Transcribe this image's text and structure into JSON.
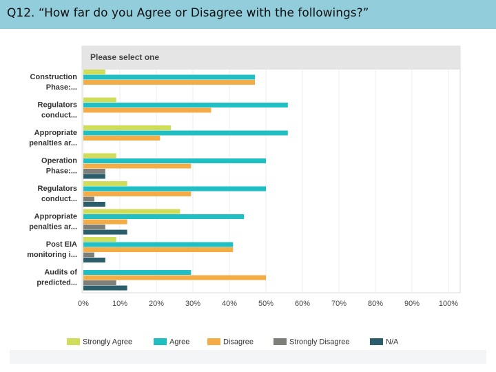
{
  "slide": {
    "title": "Q12.  “How far do you Agree or Disagree with the followings?”"
  },
  "colors": {
    "header_bg": "#92cddc",
    "strongly_agree": "#d0dd5b",
    "agree": "#1fbfc4",
    "disagree": "#f4ad46",
    "strongly_disagree": "#7f7f7a",
    "na": "#2b5d6b"
  },
  "chart_data": {
    "type": "bar",
    "orientation": "horizontal",
    "title": "Please select one",
    "categories": [
      "Construction Phase:...",
      "Regulators conduct...",
      "Appropriate penalties ar...",
      "Operation Phase:...",
      "Regulators conduct...",
      "Appropriate penalties ar...",
      "Post EIA monitoring i...",
      "Audits of predicted..."
    ],
    "category_lines": [
      [
        "Construction",
        "Phase:..."
      ],
      [
        "Regulators",
        "conduct..."
      ],
      [
        "Appropriate",
        "penalties ar..."
      ],
      [
        "Operation",
        "Phase:..."
      ],
      [
        "Regulators",
        "conduct..."
      ],
      [
        "Appropriate",
        "penalties ar..."
      ],
      [
        "Post EIA",
        "monitoring i..."
      ],
      [
        "Audits of",
        "predicted..."
      ]
    ],
    "series": [
      {
        "name": "Strongly Agree",
        "color": "#d0dd5b",
        "values": [
          6,
          9,
          24,
          9,
          12,
          26.5,
          9,
          0
        ]
      },
      {
        "name": "Agree",
        "color": "#1fbfc4",
        "values": [
          47,
          56,
          56,
          50,
          50,
          44,
          41,
          29.5
        ]
      },
      {
        "name": "Disagree",
        "color": "#f4ad46",
        "values": [
          47,
          35,
          21,
          29.5,
          29.5,
          12,
          41,
          50
        ]
      },
      {
        "name": "Strongly Disagree",
        "color": "#7f7f7a",
        "values": [
          0,
          0,
          0,
          6,
          3,
          6,
          3,
          9
        ]
      },
      {
        "name": "N/A",
        "color": "#2b5d6b",
        "values": [
          0,
          0,
          0,
          6,
          6,
          12,
          6,
          12
        ]
      }
    ],
    "xlim": [
      0,
      100
    ],
    "xticks": [
      "0%",
      "10%",
      "20%",
      "30%",
      "40%",
      "50%",
      "60%",
      "70%",
      "80%",
      "90%",
      "100%"
    ],
    "xlabel": "",
    "ylabel": "",
    "grid": true,
    "legend_position": "bottom"
  }
}
